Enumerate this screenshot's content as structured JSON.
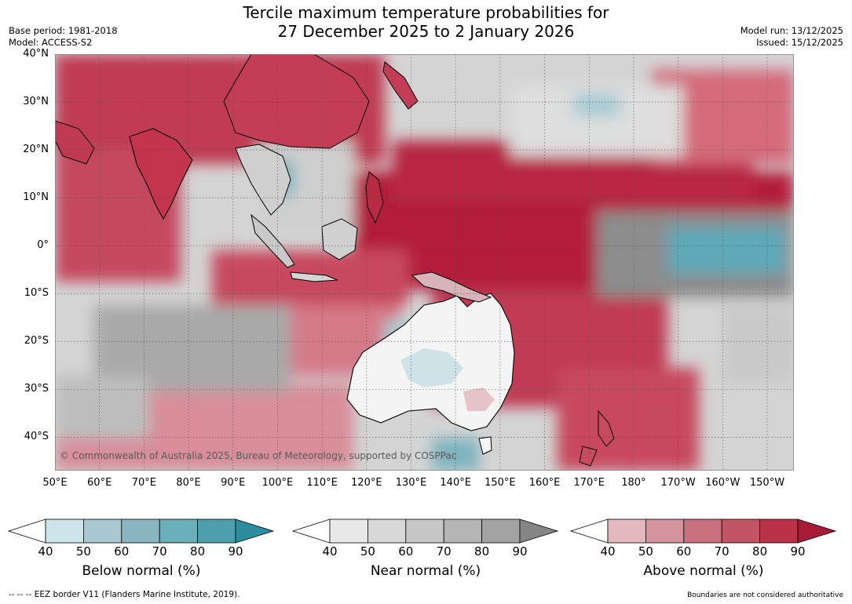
{
  "title": {
    "line1": "Tercile maximum temperature probabilities for",
    "line2": "27 December 2025 to 2 January 2026"
  },
  "meta": {
    "base_period": "Base period: 1981-2018",
    "model": "Model: ACCESS-S2",
    "model_run": "Model run: 13/12/2025",
    "issued": "Issued: 15/12/2025"
  },
  "map": {
    "latitude_labels": [
      "40°N",
      "30°N",
      "20°N",
      "10°N",
      "0°",
      "10°S",
      "20°S",
      "30°S",
      "40°S"
    ],
    "latitude_values": [
      40,
      30,
      20,
      10,
      0,
      -10,
      -20,
      -30,
      -40
    ],
    "longitude_labels": [
      "50°E",
      "60°E",
      "70°E",
      "80°E",
      "90°E",
      "100°E",
      "110°E",
      "120°E",
      "130°E",
      "140°E",
      "150°E",
      "160°E",
      "170°E",
      "180°",
      "170°W",
      "160°W",
      "150°W"
    ],
    "longitude_values": [
      50,
      60,
      70,
      80,
      90,
      100,
      110,
      120,
      130,
      140,
      150,
      160,
      170,
      180,
      190,
      200,
      210
    ],
    "extent": {
      "lon_min": 50,
      "lon_max": 216,
      "lat_min": -47,
      "lat_max": 40
    },
    "copyright": "© Commonwealth of Australia 2025, Bureau of Meteorology, supported by COSPPac",
    "colors": {
      "ocean_base": "#d2d2d2",
      "above_strong": "#b41f3a",
      "above_mid": "#c84a5e",
      "above_light": "#dc8e99",
      "near_dark": "#8a8a8a",
      "below": "#5fa9b8",
      "land_white": "#ffffff"
    }
  },
  "legends": [
    {
      "title": "Below normal (%)",
      "ticks": [
        "40",
        "50",
        "60",
        "70",
        "80",
        "90"
      ],
      "colors": [
        "#cde4ea",
        "#a8c9cf",
        "#8ab4c0",
        "#6aaeb8",
        "#4d9fac",
        "#2b8d9e"
      ]
    },
    {
      "title": "Near normal (%)",
      "ticks": [
        "40",
        "50",
        "60",
        "70",
        "80",
        "90"
      ],
      "colors": [
        "#e8e8e8",
        "#d8d8d8",
        "#c6c6c6",
        "#b4b4b4",
        "#a3a3a3",
        "#858585"
      ]
    },
    {
      "title": "Above normal (%)",
      "ticks": [
        "40",
        "50",
        "60",
        "70",
        "80",
        "90"
      ],
      "colors": [
        "#e3b8bf",
        "#d4939d",
        "#c8707e",
        "#c25465",
        "#b93247",
        "#a81b36"
      ]
    }
  ],
  "footer": {
    "eez_note": "--  --  -- EEZ border V11 (Flanders Marine Institute, 2019).",
    "boundaries_note": "Boundaries are not considered authoritative"
  }
}
